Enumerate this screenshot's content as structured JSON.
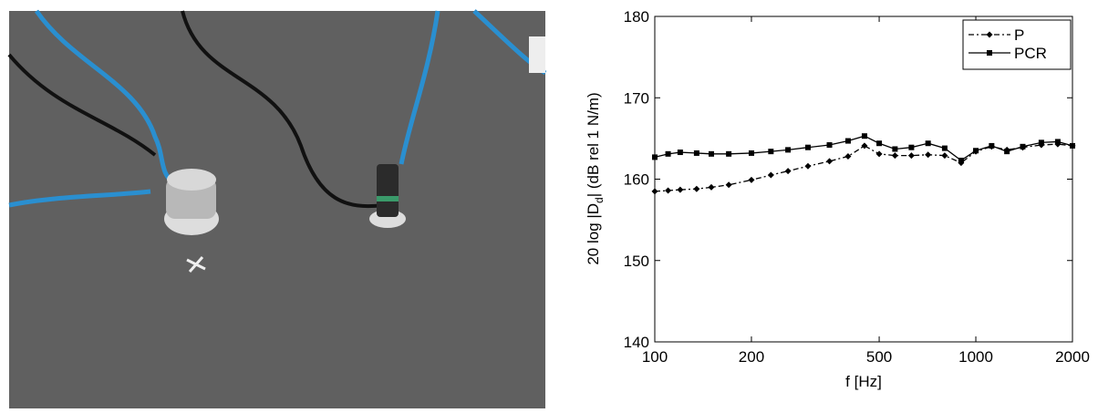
{
  "chart_data": {
    "type": "line",
    "x_label": "f [Hz]",
    "y_label": {
      "before": "20 log |D",
      "sub": "d",
      "after": "| (dB rel 1 N/m)"
    },
    "x": [
      100,
      110,
      120,
      135,
      150,
      170,
      200,
      230,
      260,
      300,
      350,
      400,
      450,
      500,
      560,
      630,
      710,
      800,
      900,
      1000,
      1120,
      1250,
      1400,
      1600,
      1800,
      2000
    ],
    "series": [
      {
        "name": "P",
        "color": "#000000",
        "line_style": "dashdot",
        "marker": "diamond",
        "values": [
          158.5,
          158.6,
          158.7,
          158.8,
          159,
          159.3,
          159.9,
          160.5,
          161,
          161.6,
          162.2,
          162.8,
          164.1,
          163.1,
          162.9,
          162.9,
          163,
          162.9,
          162,
          163.4,
          164,
          163.6,
          163.9,
          164.2,
          164.3,
          164.1
        ]
      },
      {
        "name": "PCR",
        "color": "#000000",
        "line_style": "solid",
        "marker": "square",
        "values": [
          162.7,
          163.1,
          163.3,
          163.2,
          163.1,
          163.1,
          163.2,
          163.4,
          163.6,
          163.9,
          164.2,
          164.7,
          165.3,
          164.4,
          163.7,
          163.9,
          164.4,
          163.8,
          162.3,
          163.5,
          164.1,
          163.4,
          164,
          164.5,
          164.6,
          164.1
        ]
      }
    ],
    "x_scale": "log",
    "xlim": [
      100,
      2000
    ],
    "xticks": [
      100,
      200,
      500,
      1000,
      2000
    ],
    "ylim": [
      140,
      180
    ],
    "yticks": [
      140,
      150,
      160,
      170,
      180
    ],
    "grid": false,
    "legend": "top-right"
  }
}
